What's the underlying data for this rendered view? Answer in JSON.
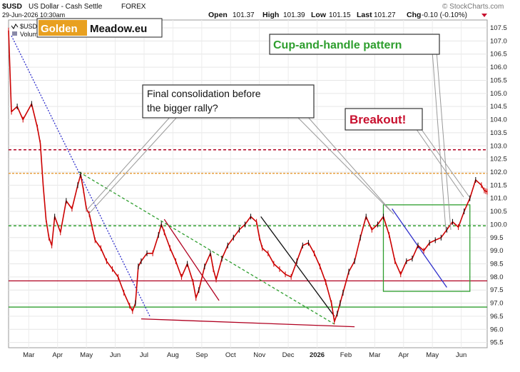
{
  "header": {
    "symbol": "$USD",
    "description": "US Dollar - Cash Settle",
    "market": "FOREX",
    "date": "29-Jun-2026 10:30am",
    "open_label": "Open",
    "open": "101.37",
    "high_label": "High",
    "high": "101.39",
    "low_label": "Low",
    "low": "101.15",
    "last_label": "Last",
    "last": "101.27",
    "chg_label": "Chg",
    "chg": "-0.10 (-0.10%)",
    "source": "© StockCharts.com"
  },
  "legend": {
    "series_short": "$USD",
    "series_volume": "Volum"
  },
  "logo": {
    "part1": "Golden",
    "part2": "Meadow.eu"
  },
  "annotations": {
    "consolidation_line1": "Final consolidation before",
    "consolidation_line2": "the bigger rally?",
    "cup_handle": "Cup-and-handle pattern",
    "breakout": "Breakout!"
  },
  "colors": {
    "price": "#cc0000",
    "bar_up": "#000000",
    "hline_red": "#b00020",
    "hline_orange": "#e8a040",
    "hline_green": "#2e9e2e",
    "trend_blue": "#3030cc",
    "cup_title": "#2e9e2e",
    "breakout_text": "#c8102e"
  },
  "chart_data": {
    "type": "line",
    "title": "$USD US Dollar - Cash Settle FOREX",
    "ylim": [
      95.3,
      107.8
    ],
    "y_ticks": [
      95.5,
      96.0,
      96.5,
      97.0,
      97.5,
      98.0,
      98.5,
      99.0,
      99.5,
      100.0,
      100.5,
      101.0,
      101.5,
      102.0,
      102.5,
      103.0,
      103.5,
      104.0,
      104.5,
      105.0,
      105.5,
      106.0,
      106.5,
      107.0,
      107.5
    ],
    "x_ticks": [
      "Mar",
      "Apr",
      "May",
      "Jun",
      "Jul",
      "Aug",
      "Sep",
      "Oct",
      "Nov",
      "Dec",
      "2026",
      "Feb",
      "Mar",
      "Apr",
      "May",
      "Jun"
    ],
    "x_tick_pos": [
      0.7,
      1.7,
      2.7,
      3.7,
      4.7,
      5.7,
      6.7,
      7.7,
      8.7,
      9.7,
      10.7,
      11.7,
      12.7,
      13.7,
      14.7,
      15.7
    ],
    "series": [
      {
        "x": [
          0.0,
          0.1,
          0.3,
          0.5,
          0.8,
          1.0,
          1.1,
          1.2,
          1.3,
          1.4,
          1.5,
          1.6,
          1.8,
          2.0,
          2.2,
          2.4,
          2.5,
          2.6,
          2.7,
          2.8,
          2.9,
          3.0,
          3.2,
          3.4,
          3.6,
          3.8,
          4.0,
          4.2,
          4.3,
          4.4,
          4.5,
          4.6,
          4.8,
          5.0,
          5.2,
          5.3,
          5.4,
          5.6,
          5.8,
          6.0,
          6.2,
          6.4,
          6.5,
          6.6,
          6.8,
          7.0,
          7.1,
          7.2,
          7.4,
          7.6,
          7.8,
          8.0,
          8.2,
          8.4,
          8.6,
          8.7,
          8.8,
          9.0,
          9.2,
          9.4,
          9.6,
          9.8,
          10.0,
          10.2,
          10.4,
          10.6,
          10.8,
          11.0,
          11.2,
          11.3,
          11.4,
          11.5,
          11.6,
          11.8,
          12.0,
          12.2,
          12.4,
          12.6,
          12.8,
          13.0,
          13.2,
          13.4,
          13.6,
          13.8,
          14.0,
          14.2,
          14.4,
          14.6,
          14.8,
          15.0,
          15.2,
          15.4,
          15.6,
          15.8,
          16.0,
          16.2,
          16.4,
          16.5,
          16.55,
          16.6
        ],
        "values": [
          107.4,
          104.3,
          104.5,
          104.0,
          104.6,
          103.7,
          103.1,
          101.5,
          100.2,
          99.5,
          99.2,
          100.3,
          99.7,
          100.9,
          100.6,
          101.5,
          101.9,
          101.3,
          100.6,
          100.4,
          99.9,
          99.4,
          99.1,
          98.6,
          98.3,
          98.0,
          97.4,
          96.9,
          96.7,
          97.0,
          98.4,
          98.6,
          98.9,
          98.9,
          99.6,
          100.0,
          99.7,
          99.1,
          98.6,
          98.0,
          98.5,
          97.8,
          97.2,
          97.5,
          98.4,
          98.9,
          98.3,
          97.9,
          98.7,
          99.2,
          99.5,
          99.8,
          100.0,
          100.3,
          100.1,
          99.5,
          99.1,
          98.9,
          98.5,
          98.3,
          98.1,
          98.0,
          98.6,
          99.2,
          99.3,
          98.9,
          98.4,
          97.8,
          97.0,
          96.3,
          96.6,
          97.0,
          97.4,
          98.2,
          98.6,
          99.5,
          100.3,
          99.8,
          100.0,
          100.3,
          99.6,
          98.6,
          98.1,
          98.6,
          98.7,
          99.2,
          99.0,
          99.3,
          99.4,
          99.5,
          99.8,
          100.1,
          99.9,
          100.5,
          101.0,
          101.7,
          101.5,
          101.3,
          101.27,
          101.25
        ]
      }
    ],
    "horizontal_lines": [
      {
        "value": 102.85,
        "style": "dashed",
        "color": "#b00020"
      },
      {
        "value": 101.95,
        "style": "dashed",
        "color": "#e8a040"
      },
      {
        "value": 99.95,
        "style": "dashed",
        "color": "#2e9e2e"
      },
      {
        "value": 97.85,
        "style": "solid",
        "color": "#b00020"
      },
      {
        "value": 96.85,
        "style": "solid",
        "color": "#2e9e2e"
      }
    ],
    "trendlines": [
      {
        "x1": 0.1,
        "y1": 107.2,
        "x2": 4.9,
        "y2": 96.5,
        "style": "dotted",
        "color": "#3030cc"
      },
      {
        "x1": 2.45,
        "y1": 102.0,
        "x2": 11.3,
        "y2": 96.2,
        "style": "dashed",
        "color": "#2e9e2e"
      },
      {
        "x1": 4.6,
        "y1": 96.4,
        "x2": 12.0,
        "y2": 96.1,
        "style": "solid",
        "color": "#b00020"
      },
      {
        "x1": 5.4,
        "y1": 100.2,
        "x2": 7.3,
        "y2": 97.1,
        "style": "solid",
        "color": "#b00020"
      },
      {
        "x1": 8.75,
        "y1": 100.3,
        "x2": 11.3,
        "y2": 96.5,
        "style": "solid",
        "color": "#111111"
      },
      {
        "x1": 13.3,
        "y1": 100.6,
        "x2": 15.2,
        "y2": 97.6,
        "style": "solid",
        "color": "#3030cc"
      }
    ],
    "boxes": [
      {
        "x1": 13.0,
        "y1": 97.45,
        "x2": 16.0,
        "y2": 100.75,
        "color": "#2e9e2e"
      }
    ]
  }
}
